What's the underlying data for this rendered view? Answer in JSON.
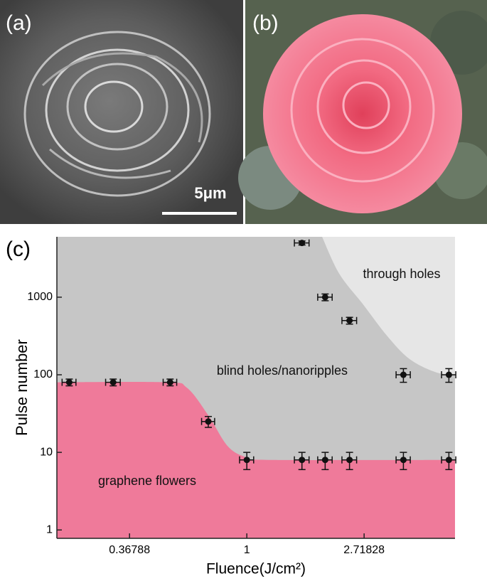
{
  "panels": {
    "a": {
      "label": "(a)",
      "scale_bar": "5μm"
    },
    "b": {
      "label": "(b)"
    }
  },
  "chart_data": {
    "type": "scatter",
    "panel_label": "(c)",
    "x_label": "Fluence(J/cm²)",
    "y_label": "Pulse number",
    "x_scale": "log",
    "y_scale": "log",
    "xlim": [
      0.198,
      5.9
    ],
    "ylim": [
      0.78,
      6000
    ],
    "xticks": [
      0.36788,
      1,
      2.71828
    ],
    "yticks": [
      1,
      10,
      100,
      1000
    ],
    "color": "#111111",
    "x": [
      0.22,
      0.32,
      0.52,
      0.72,
      1,
      1.6,
      1.95,
      2.4,
      3.8,
      5.6,
      3.8,
      5.6,
      2.4,
      1.95,
      1.6
    ],
    "values": [
      80,
      80,
      80,
      25,
      8,
      8,
      8,
      8,
      8,
      8,
      100,
      100,
      500,
      1000,
      5000
    ],
    "xerr": [
      0.013,
      0.02,
      0.03,
      0.04,
      0.06,
      0.1,
      0.12,
      0.15,
      0.23,
      0.34,
      0.23,
      0.34,
      0.15,
      0.12,
      0.1
    ],
    "yerr": [
      8,
      8,
      8,
      4,
      2,
      2,
      2,
      2,
      2,
      2,
      20,
      20,
      50,
      100,
      300
    ],
    "regions": [
      {
        "name": "blind holes/nanoripples",
        "color": "#c6c6c6",
        "fill_to": "all"
      },
      {
        "name": "through holes",
        "color": "#e6e6e6",
        "fill_to": "top",
        "x": [
          1.9,
          2.2,
          2.7,
          3.3,
          4.0,
          5.0,
          5.9
        ],
        "y": [
          6000,
          2000,
          800,
          320,
          160,
          108,
          100
        ]
      },
      {
        "name": "graphene flowers",
        "color": "#ef7a9a",
        "fill_to": "bottom",
        "x": [
          0.198,
          0.5,
          0.6,
          0.72,
          0.85,
          1.0,
          1.2,
          5.9
        ],
        "y": [
          80,
          80,
          68,
          30,
          12,
          8.6,
          8,
          8
        ]
      }
    ]
  }
}
